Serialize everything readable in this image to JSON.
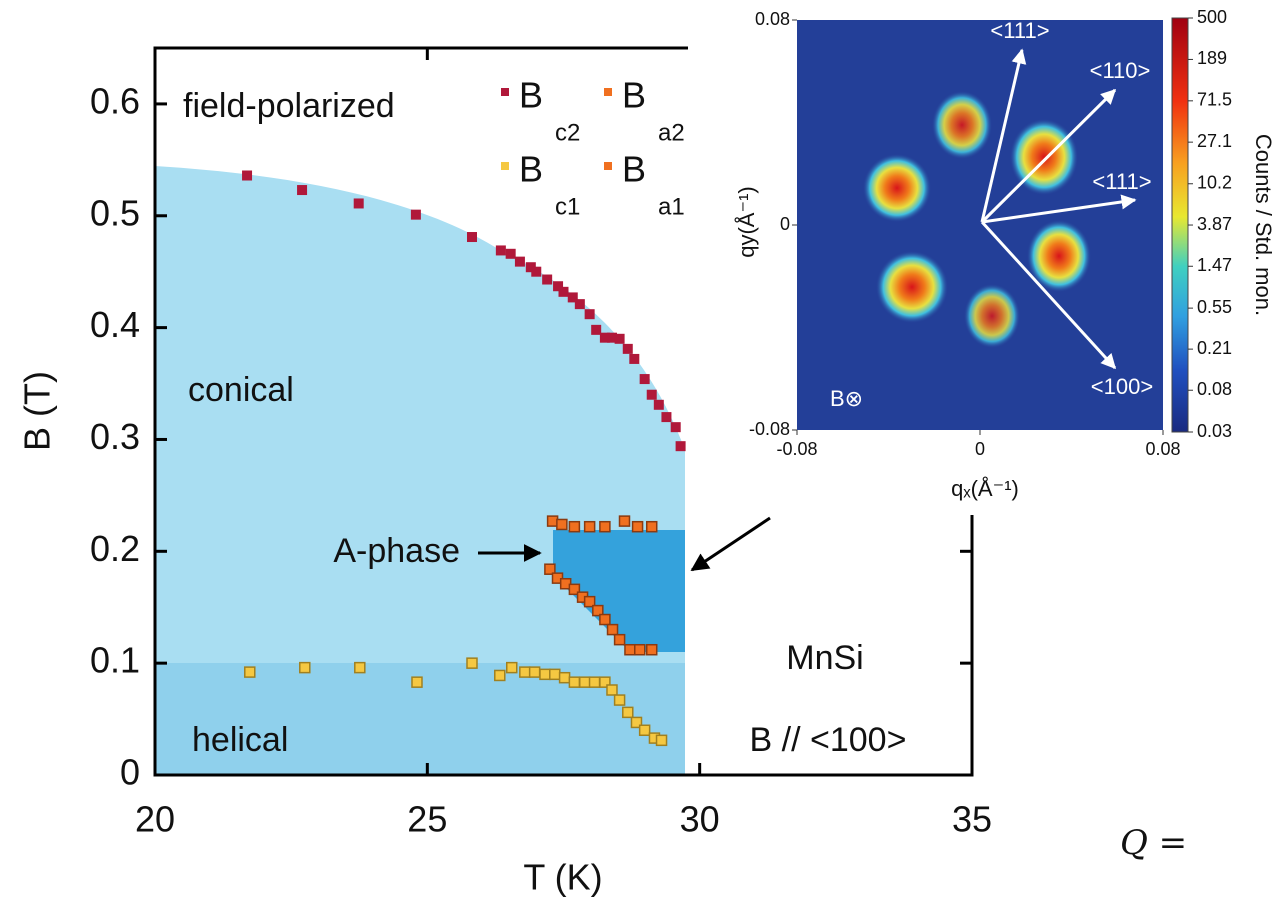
{
  "chart_data": [
    {
      "type": "scatter",
      "xlabel": "T (K)",
      "ylabel": "B (T)",
      "xlim": [
        20,
        35
      ],
      "xticks": [
        20,
        25,
        30,
        35
      ],
      "ylim": [
        0,
        0.65
      ],
      "yticks": [
        0,
        0.1,
        0.2,
        0.3,
        0.4,
        0.5,
        0.6
      ],
      "annotations": [
        "field-polarized",
        "conical",
        "helical",
        "A-phase",
        "MnSi",
        "B // <100>"
      ],
      "series": [
        {
          "name": "B",
          "subscript": "c2",
          "color": "#b0183a",
          "x": [
            21.69,
            22.7,
            23.74,
            24.79,
            25.82,
            26.35,
            26.53,
            26.7,
            26.9,
            27.0,
            27.2,
            27.4,
            27.5,
            27.67,
            27.8,
            27.98,
            28.1,
            28.26,
            28.39,
            28.53,
            28.68,
            28.8,
            28.99,
            29.12,
            29.25,
            29.39,
            29.56,
            29.65
          ],
          "values": [
            0.536,
            0.523,
            0.511,
            0.501,
            0.481,
            0.469,
            0.466,
            0.459,
            0.454,
            0.45,
            0.443,
            0.437,
            0.432,
            0.427,
            0.421,
            0.412,
            0.398,
            0.391,
            0.391,
            0.39,
            0.381,
            0.372,
            0.354,
            0.34,
            0.331,
            0.32,
            0.311,
            0.294
          ]
        },
        {
          "name": "B",
          "subscript": "a2",
          "color": "#f07020",
          "x": [
            27.3,
            27.47,
            27.7,
            27.98,
            28.26,
            28.62,
            28.86,
            29.12
          ],
          "values": [
            0.227,
            0.224,
            0.222,
            0.222,
            0.222,
            0.227,
            0.222,
            0.222
          ]
        },
        {
          "name": "B",
          "subscript": "c1",
          "color": "#f5c842",
          "x": [
            21.74,
            22.75,
            23.76,
            24.81,
            25.82,
            26.33,
            26.55,
            26.79,
            26.97,
            27.16,
            27.34,
            27.52,
            27.7,
            27.89,
            28.07,
            28.26,
            28.39,
            28.53,
            28.68,
            28.84,
            28.99,
            29.17,
            29.3
          ],
          "values": [
            0.092,
            0.096,
            0.096,
            0.083,
            0.1,
            0.089,
            0.096,
            0.092,
            0.092,
            0.09,
            0.09,
            0.087,
            0.083,
            0.083,
            0.083,
            0.083,
            0.076,
            0.067,
            0.056,
            0.047,
            0.04,
            0.033,
            0.031
          ]
        },
        {
          "name": "B",
          "subscript": "a1",
          "color": "#f07020",
          "x": [
            27.25,
            27.39,
            27.54,
            27.7,
            27.85,
            27.98,
            28.13,
            28.26,
            28.4,
            28.53,
            28.72,
            28.9,
            29.12
          ],
          "values": [
            0.184,
            0.176,
            0.171,
            0.166,
            0.159,
            0.155,
            0.147,
            0.139,
            0.13,
            0.121,
            0.112,
            0.112,
            0.112
          ]
        }
      ]
    },
    {
      "type": "image",
      "xlabel": "qₓ(Å⁻¹)",
      "ylabel": "qy(Å⁻¹)",
      "xlim": [
        -0.08,
        0.08
      ],
      "xticks": [
        -0.08,
        0,
        0.08
      ],
      "ylim": [
        -0.08,
        0.08
      ],
      "yticks": [
        -0.08,
        0,
        0.08
      ],
      "colorbar": {
        "label": "Counts / Std. mon.",
        "log": true,
        "lim": [
          0.03,
          500
        ],
        "ticks": [
          500,
          189,
          71.5,
          27.1,
          10.2,
          3.87,
          1.47,
          0.55,
          0.21,
          0.08,
          0.03
        ]
      },
      "annotations": [
        "<111>",
        "<110>",
        "<111>",
        "<100>",
        "B⊗"
      ]
    }
  ],
  "fragment": "Q ="
}
